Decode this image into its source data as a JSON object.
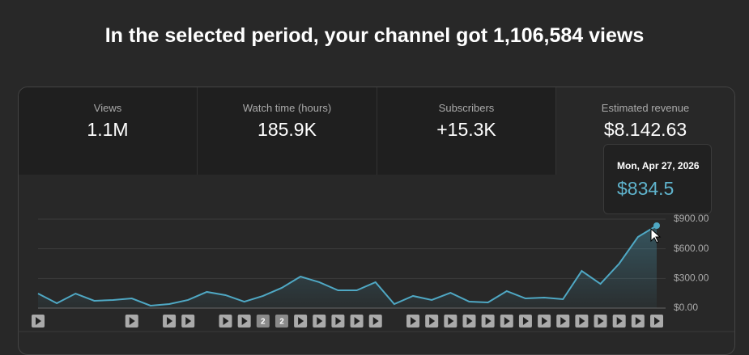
{
  "header": {
    "title": "In the selected period, your channel got 1,106,584 views"
  },
  "metrics": [
    {
      "label": "Views",
      "value": "1.1M"
    },
    {
      "label": "Watch time (hours)",
      "value": "185.9K"
    },
    {
      "label": "Subscribers",
      "value": "+15.3K"
    },
    {
      "label": "Estimated revenue",
      "value": "$8.142.63"
    }
  ],
  "tooltip": {
    "date": "Mon, Apr 27, 2026",
    "value": "$834.5"
  },
  "grouped_markers": [
    "2",
    "2"
  ],
  "chart_data": {
    "type": "line",
    "color": "#4fa8c4",
    "values": [
      147,
      49,
      147,
      74,
      82,
      98,
      25,
      41,
      82,
      164,
      131,
      65,
      123,
      205,
      319,
      262,
      180,
      180,
      262,
      41,
      123,
      82,
      155,
      65,
      57,
      172,
      98,
      106,
      90,
      376,
      245,
      450,
      720,
      834.5
    ],
    "ylim": [
      0,
      900
    ],
    "yticks": [
      {
        "value": 0,
        "label": "$0.00"
      },
      {
        "value": 300,
        "label": "$300.00"
      },
      {
        "value": 600,
        "label": "$600.00"
      },
      {
        "value": 900,
        "label": "$900.00"
      }
    ],
    "grid": true
  }
}
